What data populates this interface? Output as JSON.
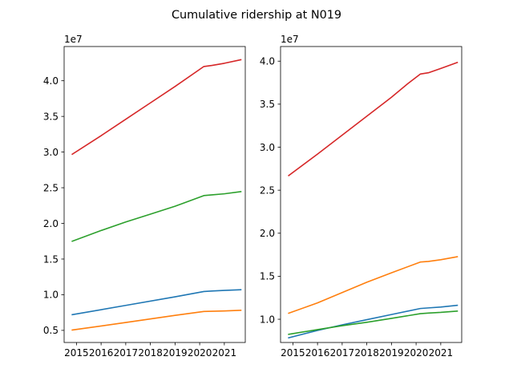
{
  "figure": {
    "title": "Cumulative ridership at N019"
  },
  "chart_data": [
    {
      "type": "line",
      "title": "",
      "xlabel": "",
      "ylabel": "",
      "y_offset_label": "1e7",
      "xlim": [
        2014.5,
        2021.85
      ],
      "ylim": [
        3300000,
        44800000
      ],
      "x_ticks": [
        2015,
        2016,
        2017,
        2018,
        2019,
        2020,
        2021
      ],
      "y_ticks": [
        5000000,
        10000000,
        15000000,
        20000000,
        25000000,
        30000000,
        35000000,
        40000000
      ],
      "y_tick_labels": [
        "0.5",
        "1.0",
        "1.5",
        "2.0",
        "2.5",
        "3.0",
        "3.5",
        "4.0"
      ],
      "grid": false,
      "series": [
        {
          "color": "#1f77b4",
          "points": [
            [
              2014.83,
              7200000
            ],
            [
              2017.0,
              8500000
            ],
            [
              2019.0,
              9700000
            ],
            [
              2020.17,
              10450000
            ],
            [
              2020.5,
              10520000
            ],
            [
              2021.0,
              10600000
            ],
            [
              2021.67,
              10700000
            ]
          ]
        },
        {
          "color": "#ff7f0e",
          "points": [
            [
              2014.83,
              5050000
            ],
            [
              2017.0,
              6100000
            ],
            [
              2019.0,
              7100000
            ],
            [
              2020.17,
              7650000
            ],
            [
              2020.5,
              7680000
            ],
            [
              2021.0,
              7720000
            ],
            [
              2021.67,
              7820000
            ]
          ]
        },
        {
          "color": "#2ca02c",
          "points": [
            [
              2014.83,
              17500000
            ],
            [
              2016.0,
              19000000
            ],
            [
              2017.0,
              20200000
            ],
            [
              2018.0,
              21300000
            ],
            [
              2019.0,
              22400000
            ],
            [
              2020.17,
              23900000
            ],
            [
              2020.5,
              24000000
            ],
            [
              2021.0,
              24150000
            ],
            [
              2021.67,
              24450000
            ]
          ]
        },
        {
          "color": "#d62728",
          "points": [
            [
              2014.83,
              29700000
            ],
            [
              2016.0,
              32300000
            ],
            [
              2017.0,
              34600000
            ],
            [
              2018.0,
              36900000
            ],
            [
              2019.0,
              39200000
            ],
            [
              2020.17,
              42000000
            ],
            [
              2020.5,
              42150000
            ],
            [
              2021.0,
              42450000
            ],
            [
              2021.67,
              42950000
            ]
          ]
        }
      ]
    },
    {
      "type": "line",
      "title": "",
      "xlabel": "",
      "ylabel": "",
      "y_offset_label": "1e7",
      "xlim": [
        2014.5,
        2021.85
      ],
      "ylim": [
        7300000,
        41700000
      ],
      "x_ticks": [
        2015,
        2016,
        2017,
        2018,
        2019,
        2020,
        2021
      ],
      "y_ticks": [
        10000000,
        15000000,
        20000000,
        25000000,
        30000000,
        35000000,
        40000000
      ],
      "y_tick_labels": [
        "1.0",
        "1.5",
        "2.0",
        "2.5",
        "3.0",
        "3.5",
        "4.0"
      ],
      "grid": false,
      "series": [
        {
          "color": "#1f77b4",
          "points": [
            [
              2014.83,
              7850000
            ],
            [
              2016.0,
              8700000
            ],
            [
              2017.0,
              9350000
            ],
            [
              2018.0,
              9950000
            ],
            [
              2019.0,
              10550000
            ],
            [
              2020.17,
              11250000
            ],
            [
              2020.5,
              11320000
            ],
            [
              2021.0,
              11420000
            ],
            [
              2021.67,
              11620000
            ]
          ]
        },
        {
          "color": "#ff7f0e",
          "points": [
            [
              2014.83,
              10700000
            ],
            [
              2016.0,
              11900000
            ],
            [
              2017.0,
              13100000
            ],
            [
              2018.0,
              14300000
            ],
            [
              2019.0,
              15400000
            ],
            [
              2020.17,
              16650000
            ],
            [
              2020.5,
              16720000
            ],
            [
              2021.0,
              16920000
            ],
            [
              2021.67,
              17270000
            ]
          ]
        },
        {
          "color": "#2ca02c",
          "points": [
            [
              2014.83,
              8250000
            ],
            [
              2016.0,
              8800000
            ],
            [
              2017.0,
              9250000
            ],
            [
              2018.0,
              9650000
            ],
            [
              2019.0,
              10100000
            ],
            [
              2020.17,
              10650000
            ],
            [
              2020.5,
              10720000
            ],
            [
              2021.0,
              10800000
            ],
            [
              2021.67,
              10950000
            ]
          ]
        },
        {
          "color": "#d62728",
          "points": [
            [
              2014.83,
              26700000
            ],
            [
              2016.0,
              29200000
            ],
            [
              2017.0,
              31400000
            ],
            [
              2018.0,
              33600000
            ],
            [
              2019.0,
              35800000
            ],
            [
              2019.67,
              37400000
            ],
            [
              2020.17,
              38500000
            ],
            [
              2020.5,
              38650000
            ],
            [
              2021.0,
              39150000
            ],
            [
              2021.67,
              39850000
            ]
          ]
        }
      ]
    }
  ]
}
